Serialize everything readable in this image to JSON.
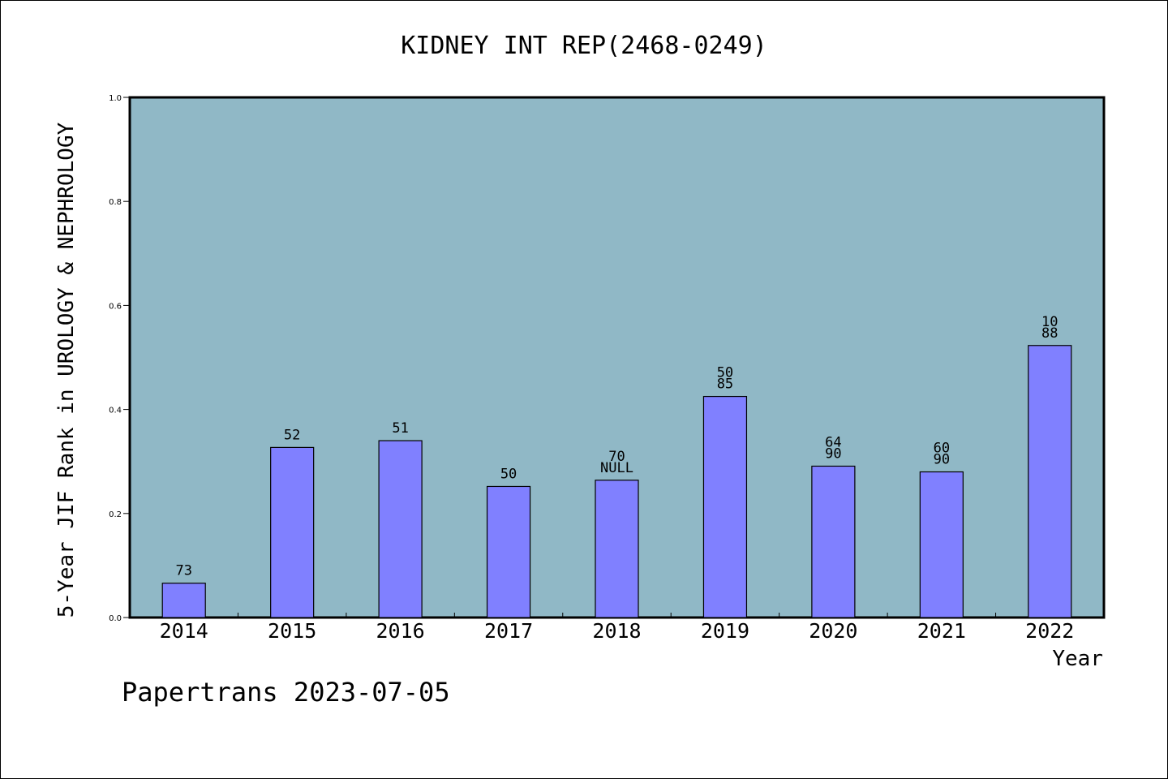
{
  "chart_data": {
    "type": "bar",
    "title": "KIDNEY INT REP(2468-0249)",
    "xlabel": "Year",
    "ylabel": "5-Year JIF Rank in UROLOGY & NEPHROLOGY",
    "ylim": [
      0,
      1.0
    ],
    "yticks": [
      "0.0",
      "0.2",
      "0.4",
      "0.6",
      "0.8",
      "1.0"
    ],
    "categories": [
      "2014",
      "2015",
      "2016",
      "2017",
      "2018",
      "2019",
      "2020",
      "2021",
      "2022"
    ],
    "values": [
      0.066,
      0.327,
      0.34,
      0.252,
      0.264,
      0.425,
      0.291,
      0.28,
      0.523
    ],
    "bar_labels": [
      [
        "73"
      ],
      [
        "52"
      ],
      [
        "51"
      ],
      [
        "50"
      ],
      [
        "70",
        "NULL"
      ],
      [
        "50",
        "85"
      ],
      [
        "64",
        "90"
      ],
      [
        "60",
        "90"
      ],
      [
        "10",
        "88"
      ]
    ],
    "colors": {
      "plot_bg": "#90b8c6",
      "bar_fill": "#8080ff",
      "bar_stroke": "#000000"
    },
    "grid": false,
    "legend": "none"
  },
  "footer": {
    "watermark": "Papertrans 2023-07-05"
  }
}
